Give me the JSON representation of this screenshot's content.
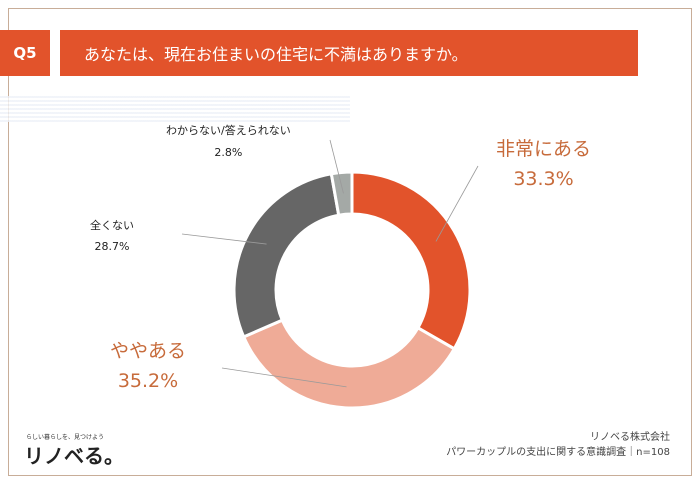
{
  "header": {
    "question_number": "Q5",
    "question_text": "あなたは、現在お住まいの住宅に不満はありますか。"
  },
  "chart_data": {
    "type": "pie",
    "categories": [
      "非常にある",
      "ややある",
      "全くない",
      "わからない/答えられない"
    ],
    "values": [
      33.3,
      35.2,
      28.7,
      2.8
    ],
    "value_labels": [
      "33.3%",
      "35.2%",
      "28.7%",
      "2.8%"
    ],
    "colors": [
      "#e2532b",
      "#efab97",
      "#666666",
      "#a4a9a6"
    ],
    "donut": true
  },
  "footer": {
    "company": "リノベる株式会社",
    "survey": "パワーカップルの支出に関する意識調査｜n=108"
  },
  "brand": {
    "logo_text": "リノベる。",
    "tagline": "らしい暮らしを、見つけよう"
  }
}
